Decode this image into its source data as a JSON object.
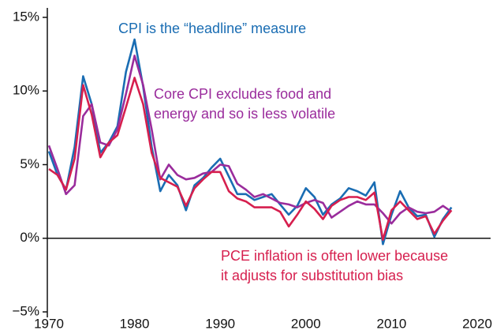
{
  "chart_data": {
    "type": "line",
    "annotations": [
      {
        "lines": [
          "CPI is the “headline” measure"
        ],
        "color": "#1a6db3"
      },
      {
        "lines": [
          "Core CPI excludes food and",
          "energy and so is less volatile"
        ],
        "color": "#9a2c9c"
      },
      {
        "lines": [
          "PCE inflation is often lower because",
          "it adjusts for substitution bias"
        ],
        "color": "#d61f4e"
      }
    ],
    "x": [
      1970,
      1971,
      1972,
      1973,
      1974,
      1975,
      1976,
      1977,
      1978,
      1979,
      1980,
      1981,
      1982,
      1983,
      1984,
      1985,
      1986,
      1987,
      1988,
      1989,
      1990,
      1991,
      1992,
      1993,
      1994,
      1995,
      1996,
      1997,
      1998,
      1999,
      2000,
      2001,
      2002,
      2003,
      2004,
      2005,
      2006,
      2007,
      2008,
      2009,
      2010,
      2011,
      2012,
      2013,
      2014,
      2015,
      2016,
      2017
    ],
    "series": [
      {
        "name": "CPI",
        "color": "#1a6db3",
        "values": [
          5.9,
          4.3,
          3.3,
          6.2,
          11.0,
          9.1,
          5.8,
          6.5,
          7.6,
          11.3,
          13.5,
          10.3,
          6.2,
          3.2,
          4.3,
          3.6,
          1.9,
          3.6,
          4.1,
          4.8,
          5.4,
          4.2,
          3.0,
          3.0,
          2.6,
          2.8,
          3.0,
          2.3,
          1.6,
          2.2,
          3.4,
          2.8,
          1.6,
          2.3,
          2.7,
          3.4,
          3.2,
          2.9,
          3.8,
          -0.4,
          1.6,
          3.2,
          2.1,
          1.5,
          1.6,
          0.1,
          1.3,
          2.1
        ]
      },
      {
        "name": "Core CPI",
        "color": "#9a2c9c",
        "values": [
          6.3,
          4.7,
          3.0,
          3.6,
          8.3,
          9.1,
          6.5,
          6.3,
          7.4,
          9.8,
          12.4,
          10.4,
          7.4,
          4.0,
          5.0,
          4.3,
          4.0,
          4.1,
          4.4,
          4.5,
          5.0,
          4.9,
          3.7,
          3.3,
          2.8,
          3.0,
          2.7,
          2.4,
          2.3,
          2.1,
          2.4,
          2.6,
          2.4,
          1.4,
          1.8,
          2.2,
          2.5,
          2.3,
          2.3,
          1.7,
          1.0,
          1.7,
          2.1,
          1.8,
          1.7,
          1.8,
          2.2,
          1.8
        ]
      },
      {
        "name": "PCE",
        "color": "#d61f4e",
        "values": [
          4.7,
          4.3,
          3.3,
          5.4,
          10.4,
          8.4,
          5.5,
          6.5,
          7.0,
          8.9,
          10.9,
          9.1,
          5.8,
          4.1,
          3.8,
          3.5,
          2.2,
          3.4,
          4.0,
          4.5,
          4.5,
          3.2,
          2.7,
          2.5,
          2.1,
          2.1,
          2.1,
          1.8,
          0.8,
          1.6,
          2.5,
          2.0,
          1.3,
          2.2,
          2.6,
          2.8,
          2.8,
          2.6,
          3.1,
          -0.1,
          1.9,
          2.5,
          1.9,
          1.3,
          1.5,
          0.3,
          1.2,
          1.9
        ]
      }
    ],
    "xlim": [
      1970,
      2020
    ],
    "xticks": [
      1970,
      1980,
      1990,
      2000,
      2010,
      2020
    ],
    "ylim": [
      -5,
      15
    ],
    "yticks": [
      {
        "value": -5,
        "label": "−5%"
      },
      {
        "value": 0,
        "label": "0%"
      },
      {
        "value": 5,
        "label": "5%"
      },
      {
        "value": 10,
        "label": "10%"
      },
      {
        "value": 15,
        "label": "15%"
      }
    ]
  }
}
